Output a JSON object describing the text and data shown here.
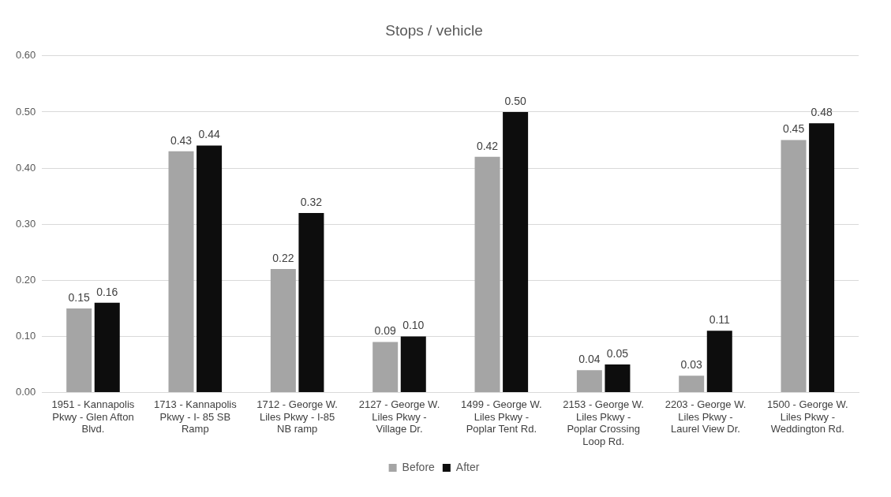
{
  "chart_data": {
    "type": "bar",
    "title": "Stops / vehicle",
    "categories": [
      "1951 - Kannapolis Pkwy - Glen Afton Blvd.",
      "1713 - Kannapolis Pkwy - I- 85 SB Ramp",
      "1712 - George W. Liles Pkwy - I-85 NB ramp",
      "2127 - George W. Liles Pkwy - Village Dr.",
      "1499 - George W. Liles Pkwy - Poplar Tent Rd.",
      "2153 - George W. Liles Pkwy - Poplar Crossing Loop Rd.",
      "2203 - George W. Liles Pkwy - Laurel View Dr.",
      "1500 - George W. Liles Pkwy - Weddington Rd."
    ],
    "series": [
      {
        "name": "Before",
        "color": "#a5a5a5",
        "values": [
          0.15,
          0.43,
          0.22,
          0.09,
          0.42,
          0.04,
          0.03,
          0.45
        ],
        "value_labels": [
          "0.15",
          "0.43",
          "0.22",
          "0.09",
          "0.42",
          "0.04",
          "0.03",
          "0.45"
        ]
      },
      {
        "name": "After",
        "color": "#0d0d0d",
        "values": [
          0.16,
          0.44,
          0.32,
          0.1,
          0.5,
          0.05,
          0.11,
          0.48
        ],
        "value_labels": [
          "0.16",
          "0.44",
          "0.32",
          "0.10",
          "0.50",
          "0.05",
          "0.11",
          "0.48"
        ]
      }
    ],
    "ylim": [
      0,
      0.6
    ],
    "yticks": [
      {
        "value": 0,
        "label": "0.00"
      },
      {
        "value": 0.1,
        "label": "0.10"
      },
      {
        "value": 0.2,
        "label": "0.20"
      },
      {
        "value": 0.3,
        "label": "0.30"
      },
      {
        "value": 0.4,
        "label": "0.40"
      },
      {
        "value": 0.5,
        "label": "0.50"
      },
      {
        "value": 0.6,
        "label": "0.60"
      }
    ],
    "grid": "y",
    "legend": "bottom"
  }
}
